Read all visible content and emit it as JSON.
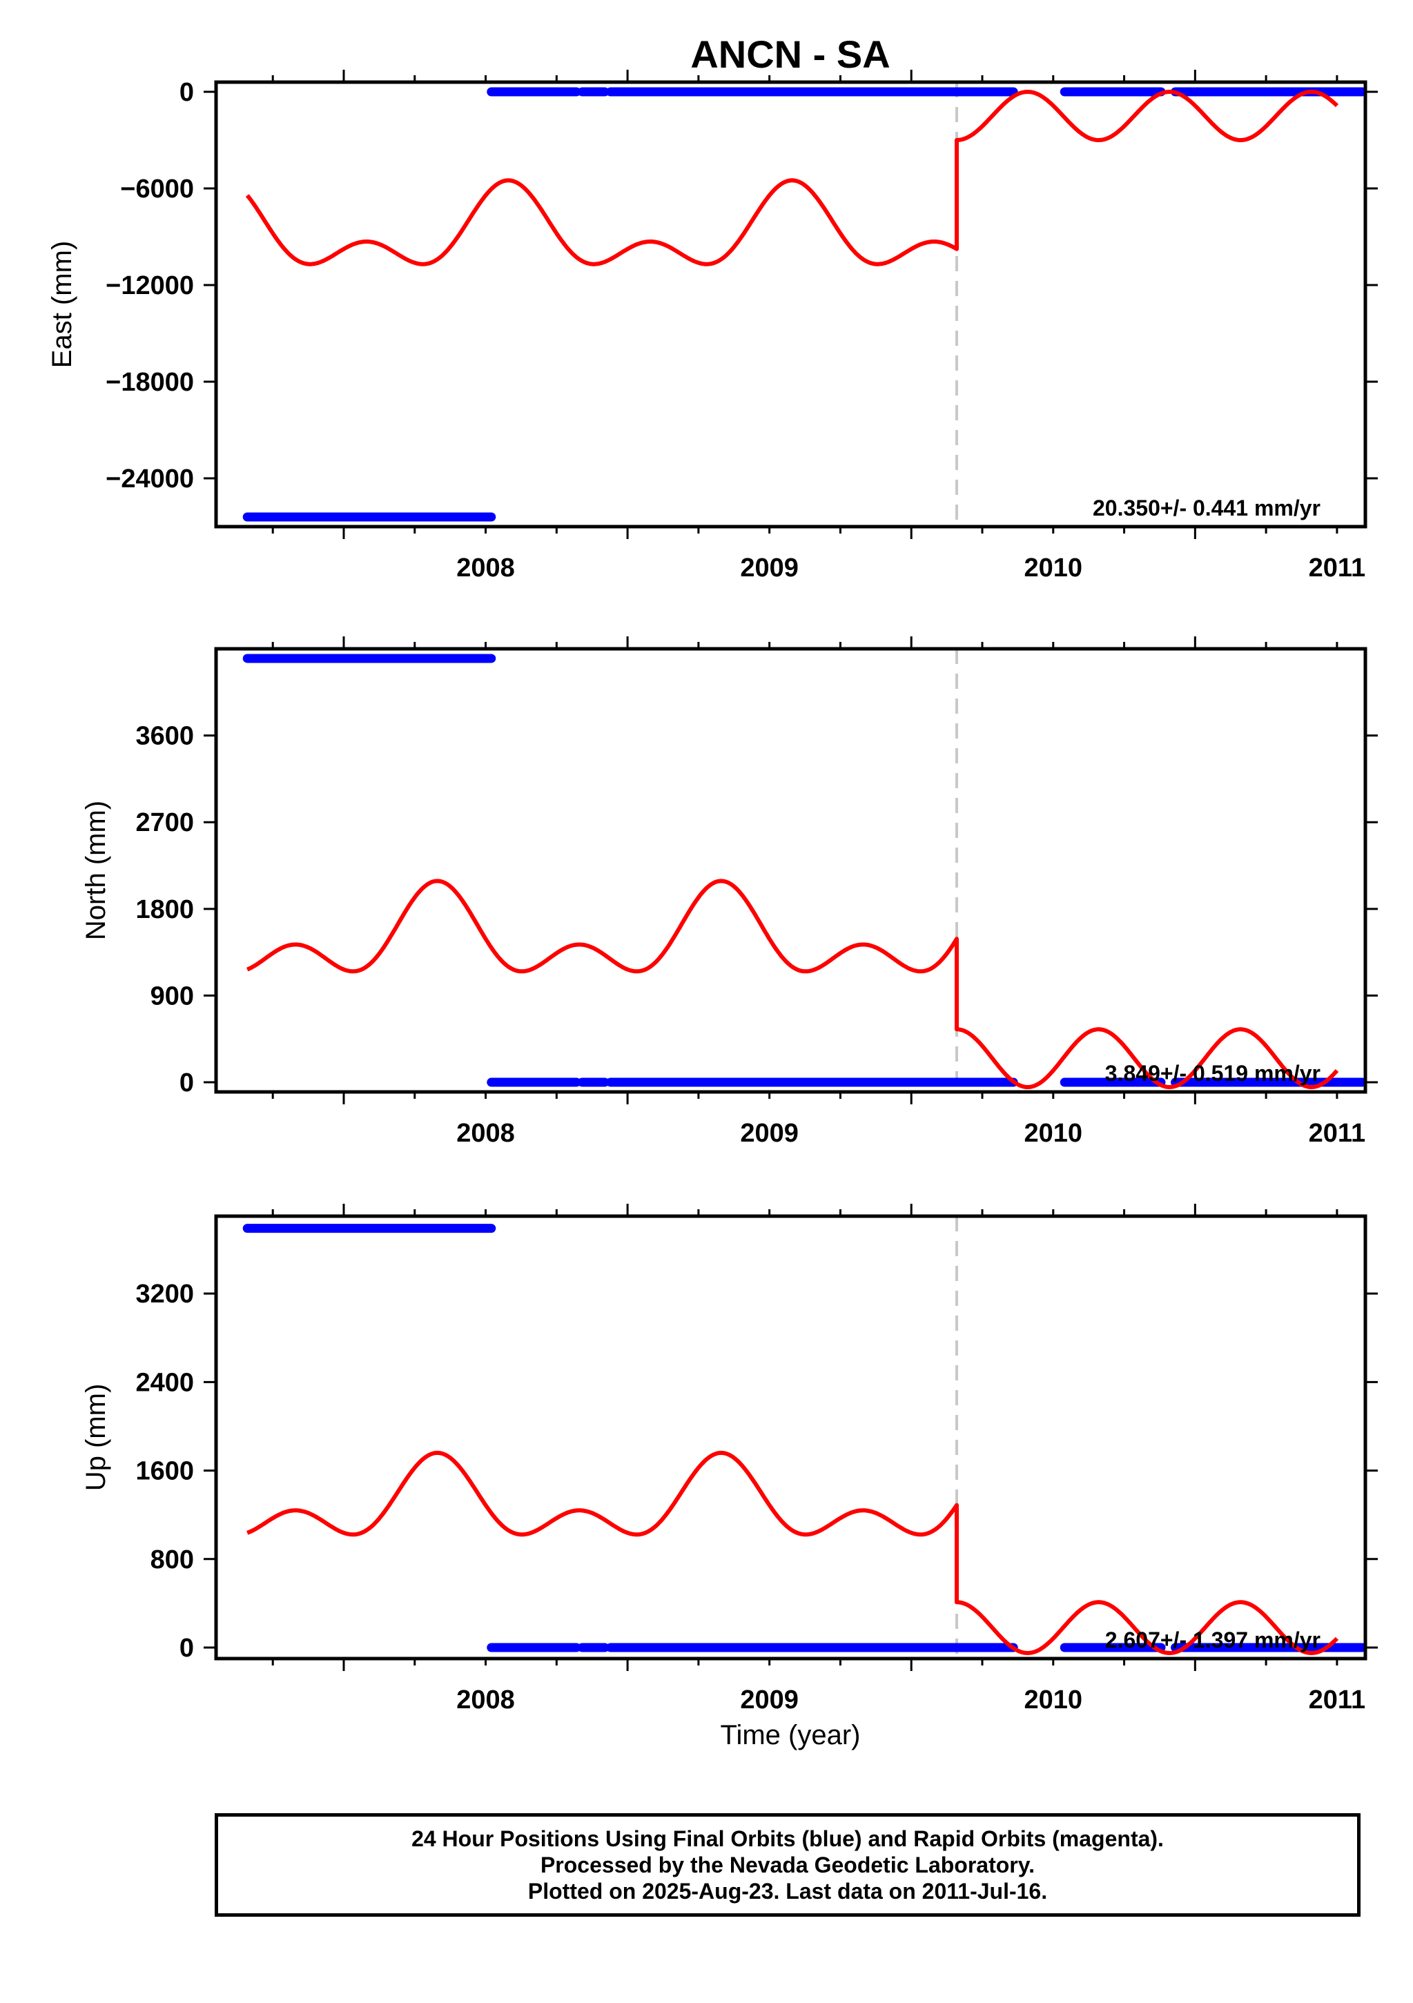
{
  "chart_data": {
    "type": "scatter",
    "title": "ANCN - SA",
    "xlabel": "Time (year)",
    "x_ticks": [
      "2008",
      "2009",
      "2010",
      "2011"
    ],
    "xlim": [
      2007.55,
      2011.6
    ],
    "equipment_change_year": 2010.16,
    "series_names": {
      "points": "Final Orbits (blue)",
      "model": "model fit (red)"
    },
    "colors": {
      "points": "#0000ff",
      "model": "#ff0000",
      "offset_line": "#c8c8c8"
    },
    "panels": [
      {
        "ylabel": "East (mm)",
        "ylim": [
          -27000,
          600
        ],
        "yticks": [
          0,
          -6000,
          -12000,
          -18000,
          -24000
        ],
        "rate_text": "20.350+/- 0.441 mm/yr",
        "points": [
          {
            "x": [
              2007.66,
              2008.52
            ],
            "y": -26400
          },
          {
            "x": [
              2008.52,
              2008.82
            ],
            "y": 0
          },
          {
            "x": [
              2008.84,
              2008.92
            ],
            "y": 0
          },
          {
            "x": [
              2008.94,
              2010.36
            ],
            "y": 0
          },
          {
            "x": [
              2010.54,
              2010.88
            ],
            "y": 0
          },
          {
            "x": [
              2010.93,
              2011.59
            ],
            "y": 0
          }
        ],
        "model": {
          "pre": {
            "x0": 2007.66,
            "x1": 2010.16,
            "offset": -8900,
            "a1": 1900,
            "p1": 0.0,
            "a2": 1500,
            "p2": 0.0
          },
          "post": {
            "x0": 2010.16,
            "x1": 2011.5,
            "offset": -1500,
            "a1": 1500,
            "p1": 0.5
          }
        }
      },
      {
        "ylabel": "North (mm)",
        "ylim": [
          -100,
          4500
        ],
        "yticks": [
          0,
          900,
          1800,
          2700,
          3600
        ],
        "rate_text": "3.849+/- 0.519 mm/yr",
        "points": [
          {
            "x": [
              2007.66,
              2008.52
            ],
            "y": 4400
          },
          {
            "x": [
              2008.52,
              2008.82
            ],
            "y": 0
          },
          {
            "x": [
              2008.84,
              2008.92
            ],
            "y": 0
          },
          {
            "x": [
              2008.94,
              2010.36
            ],
            "y": 0
          },
          {
            "x": [
              2010.54,
              2010.88
            ],
            "y": 0
          },
          {
            "x": [
              2010.93,
              2011.59
            ],
            "y": 0
          }
        ],
        "model": {
          "pre": {
            "x0": 2007.66,
            "x1": 2010.16,
            "offset": 1480,
            "a1": 330,
            "p1": 0.25,
            "a2": 280,
            "p2": 0.25
          },
          "post": {
            "x0": 2010.16,
            "x1": 2011.5,
            "offset": 250,
            "a1": 300,
            "p1": 0.0
          }
        }
      },
      {
        "ylabel": "Up (mm)",
        "ylim": [
          -100,
          3900
        ],
        "yticks": [
          0,
          800,
          1600,
          2400,
          3200
        ],
        "rate_text": "2.607+/- 1.397 mm/yr",
        "points": [
          {
            "x": [
              2007.66,
              2008.52
            ],
            "y": 3790
          },
          {
            "x": [
              2008.52,
              2008.82
            ],
            "y": 0
          },
          {
            "x": [
              2008.84,
              2008.92
            ],
            "y": 0
          },
          {
            "x": [
              2008.94,
              2010.36
            ],
            "y": 0
          },
          {
            "x": [
              2010.54,
              2010.88
            ],
            "y": 0
          },
          {
            "x": [
              2010.93,
              2011.59
            ],
            "y": 0
          }
        ],
        "model": {
          "pre": {
            "x0": 2007.66,
            "x1": 2010.16,
            "offset": 1280,
            "a1": 260,
            "p1": 0.25,
            "a2": 220,
            "p2": 0.25
          },
          "post": {
            "x0": 2010.16,
            "x1": 2011.5,
            "offset": 180,
            "a1": 230,
            "p1": 0.0
          }
        }
      }
    ]
  },
  "footer": {
    "line1": "24 Hour Positions Using Final Orbits (blue) and Rapid Orbits (magenta).",
    "line2": "Processed by the Nevada Geodetic Laboratory.",
    "line3": "Plotted on 2025-Aug-23. Last data on 2011-Jul-16."
  }
}
